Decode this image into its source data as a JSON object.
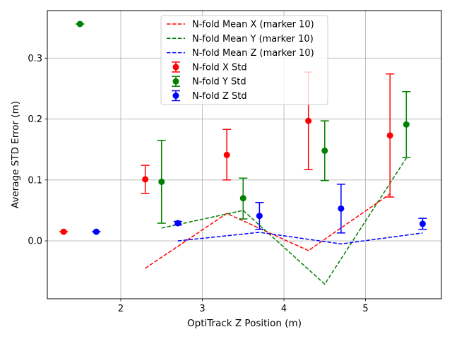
{
  "chart_data": {
    "type": "scatter",
    "title": "",
    "xlabel": "OptiTrack Z Position (m)",
    "ylabel": "Average STD Error (m)",
    "xlim": [
      1.1,
      5.93
    ],
    "ylim": [
      -0.095,
      0.378
    ],
    "xticks": [
      2,
      3,
      4,
      5
    ],
    "yticks": [
      0.0,
      0.1,
      0.2,
      0.3
    ],
    "xtick_labels": [
      "2",
      "3",
      "4",
      "5"
    ],
    "ytick_labels": [
      "0.0",
      "0.1",
      "0.2",
      "0.3"
    ],
    "grid": true,
    "legend_position": "upper center",
    "lines": [
      {
        "name": "N-fold Mean X (marker 10)",
        "color": "#ff0000",
        "style": "dashed",
        "x": [
          2.3,
          3.3,
          4.3,
          5.3
        ],
        "y": [
          -0.045,
          0.045,
          -0.016,
          0.077
        ]
      },
      {
        "name": "N-fold Mean Y (marker 10)",
        "color": "#008000",
        "style": "dashed",
        "x": [
          2.5,
          3.5,
          4.5,
          5.5
        ],
        "y": [
          0.021,
          0.05,
          -0.071,
          0.136
        ]
      },
      {
        "name": "N-fold Mean Z (marker 10)",
        "color": "#0000ff",
        "style": "dashed",
        "x": [
          2.7,
          3.7,
          4.7,
          5.7
        ],
        "y": [
          0.0,
          0.014,
          -0.005,
          0.013
        ]
      }
    ],
    "errorbar_series": [
      {
        "name": "N-fold X Std",
        "color": "#ff0000",
        "points": [
          {
            "x": 1.3,
            "y": 0.015,
            "lo": 0.015,
            "hi": 0.015
          },
          {
            "x": 2.3,
            "y": 0.101,
            "lo": 0.078,
            "hi": 0.124
          },
          {
            "x": 3.3,
            "y": 0.141,
            "lo": 0.1,
            "hi": 0.183
          },
          {
            "x": 4.3,
            "y": 0.197,
            "lo": 0.117,
            "hi": 0.277
          },
          {
            "x": 5.3,
            "y": 0.173,
            "lo": 0.072,
            "hi": 0.274
          }
        ]
      },
      {
        "name": "N-fold Y Std",
        "color": "#008000",
        "points": [
          {
            "x": 1.5,
            "y": 0.356,
            "lo": 0.356,
            "hi": 0.356
          },
          {
            "x": 2.5,
            "y": 0.097,
            "lo": 0.029,
            "hi": 0.165
          },
          {
            "x": 3.5,
            "y": 0.07,
            "lo": 0.036,
            "hi": 0.103
          },
          {
            "x": 4.5,
            "y": 0.148,
            "lo": 0.099,
            "hi": 0.197
          },
          {
            "x": 5.5,
            "y": 0.191,
            "lo": 0.137,
            "hi": 0.245
          }
        ]
      },
      {
        "name": "N-fold Z Std",
        "color": "#0000ff",
        "points": [
          {
            "x": 1.7,
            "y": 0.015,
            "lo": 0.015,
            "hi": 0.015
          },
          {
            "x": 2.7,
            "y": 0.029,
            "lo": 0.026,
            "hi": 0.032
          },
          {
            "x": 3.7,
            "y": 0.041,
            "lo": 0.019,
            "hi": 0.063
          },
          {
            "x": 4.7,
            "y": 0.053,
            "lo": 0.013,
            "hi": 0.093
          },
          {
            "x": 5.7,
            "y": 0.028,
            "lo": 0.019,
            "hi": 0.037
          }
        ]
      }
    ]
  }
}
